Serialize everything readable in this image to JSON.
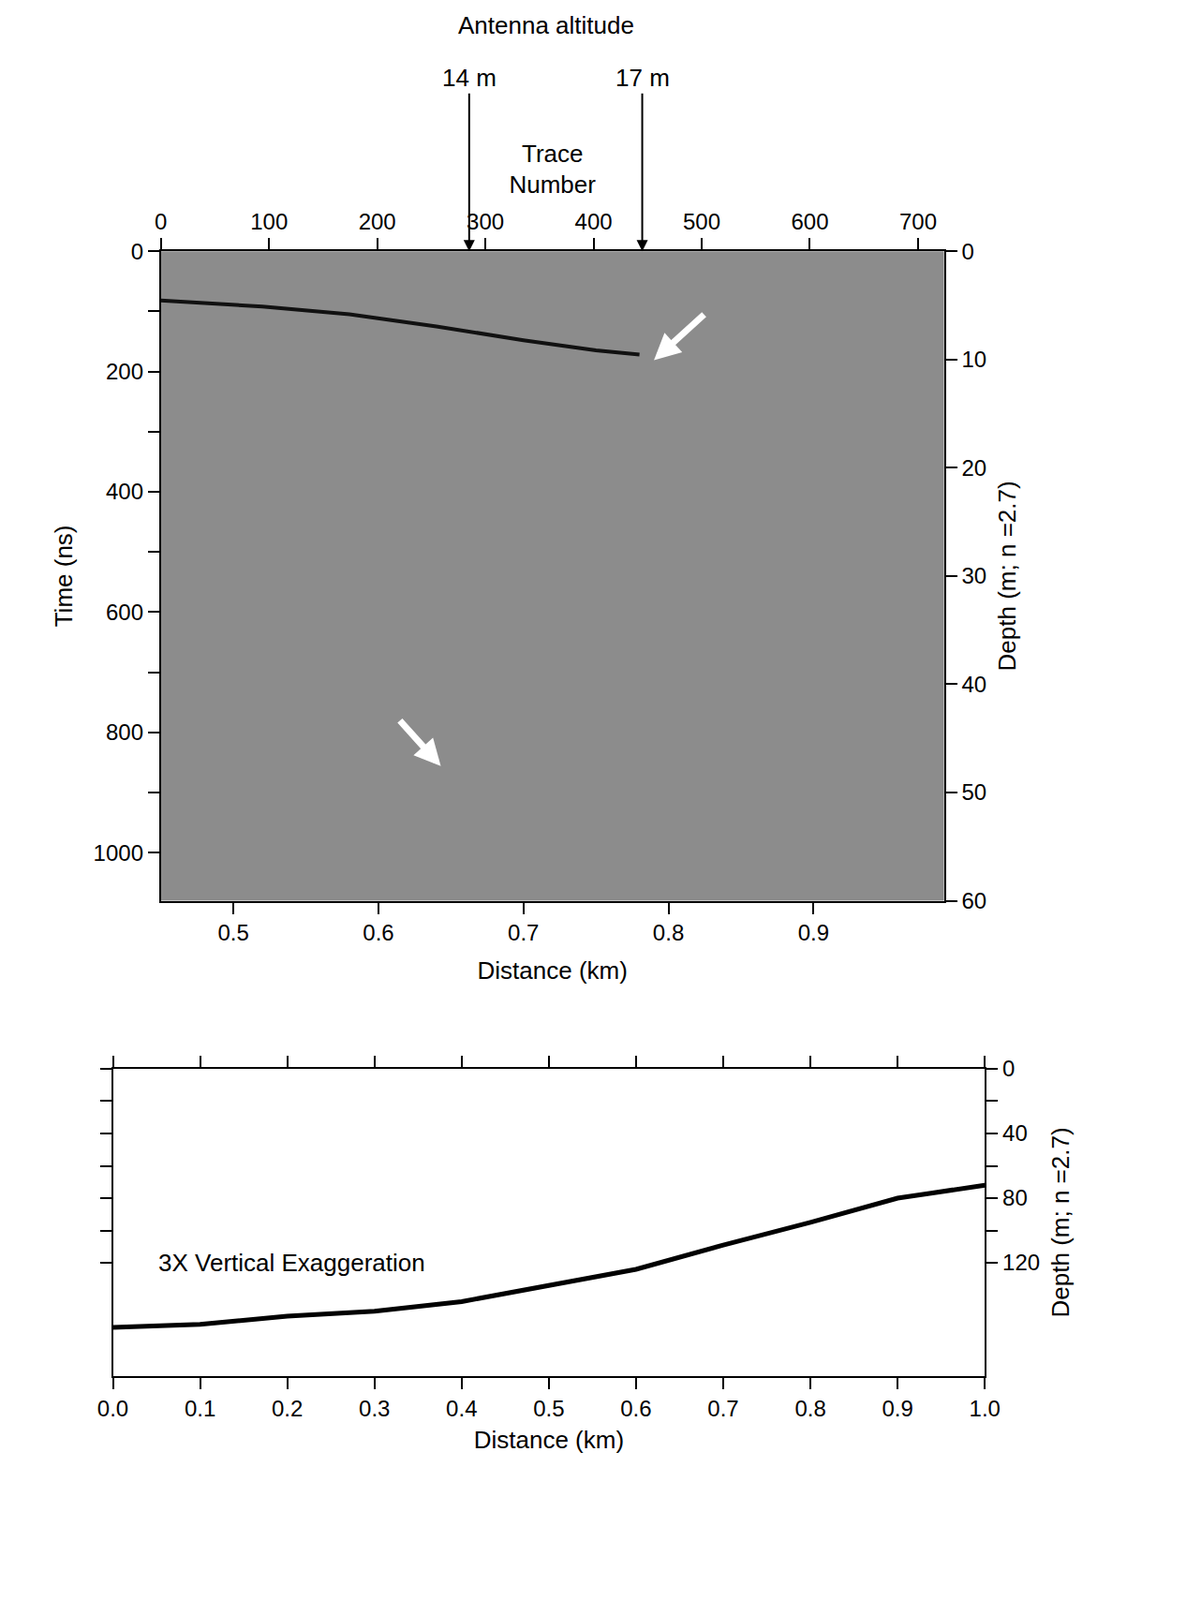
{
  "chart_data": [
    {
      "type": "line",
      "x_label": "Distance (km)",
      "y_label": "Time (ns)",
      "y2_label": "Depth (m; n =2.7)",
      "x2_label": "Trace Number",
      "xlim": [
        0.45,
        0.99
      ],
      "xticks": [
        0.5,
        0.6,
        0.7,
        0.8,
        0.9
      ],
      "x2lim": [
        0,
        724
      ],
      "x2ticks": [
        0,
        100,
        200,
        300,
        400,
        500,
        600,
        700
      ],
      "ylim": [
        1080,
        0
      ],
      "yticks": [
        0,
        200,
        400,
        600,
        800,
        1000
      ],
      "y2lim": [
        60,
        0
      ],
      "y2ticks": [
        0,
        10,
        20,
        30,
        40,
        50,
        60
      ],
      "x": [
        0.45,
        0.52,
        0.58,
        0.64,
        0.7,
        0.75,
        0.78
      ],
      "series": [
        {
          "color": "#111111",
          "values": [
            82,
            92,
            105,
            125,
            148,
            165,
            172
          ]
        }
      ],
      "annotations_title": "Antenna altitude",
      "annotations": [
        {
          "text": "14 m",
          "x2": 285
        },
        {
          "text": "17 m",
          "x2": 445
        }
      ],
      "arrows": [
        {
          "x": 0.79,
          "y": 181
        },
        {
          "x": 0.643,
          "y": 856
        }
      ]
    },
    {
      "type": "line",
      "x_label": "Distance (km)",
      "y_label": "Depth (m; n =2.7)",
      "xlim": [
        0,
        1
      ],
      "xticks": [
        {
          "value": 0,
          "label": "0.0"
        },
        0.1,
        0.2,
        0.3,
        0.4,
        0.5,
        0.6,
        0.7,
        0.8,
        0.9,
        {
          "value": 1,
          "label": "1.0"
        }
      ],
      "ylim": [
        190,
        0
      ],
      "yticks": [
        0,
        40,
        80,
        120
      ],
      "x": [
        0,
        0.1,
        0.2,
        0.3,
        0.4,
        0.5,
        0.6,
        0.7,
        0.8,
        0.9,
        1.0
      ],
      "series": [
        {
          "color": "#000000",
          "values": [
            160,
            158,
            153,
            150,
            144,
            134,
            124,
            109,
            95,
            80,
            72
          ]
        }
      ],
      "annotations": [
        {
          "text": "3X Vertical Exaggeration",
          "x": 0.05,
          "y": 120
        }
      ]
    }
  ]
}
